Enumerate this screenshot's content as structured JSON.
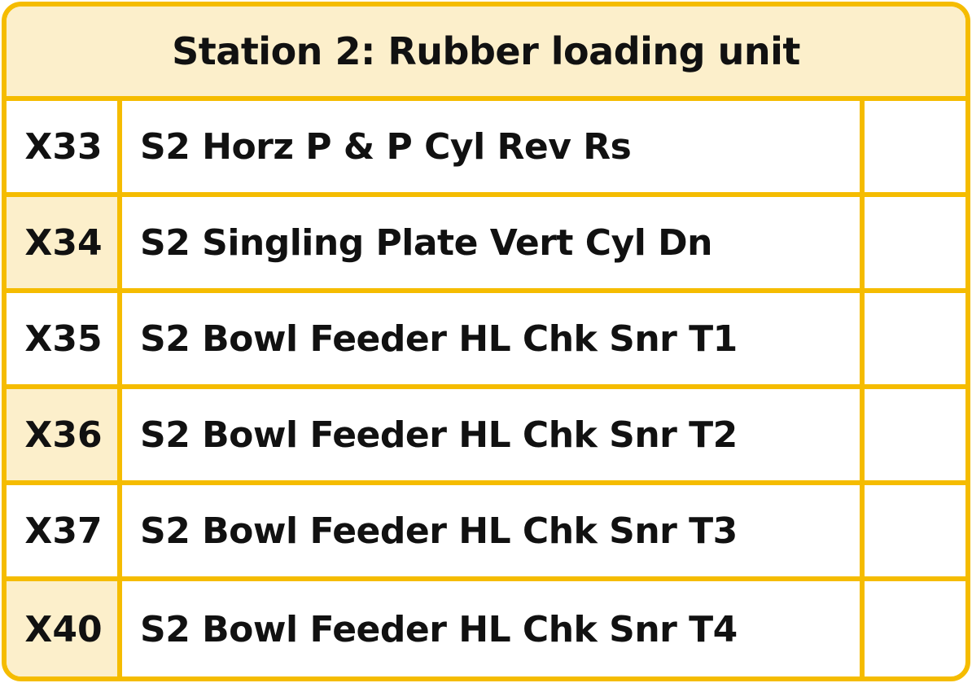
{
  "panel": {
    "title": "Station 2: Rubber loading unit",
    "colors": {
      "border": "#F5BC00",
      "header_fill": "#FCEFCB",
      "shaded_cell_fill": "#FCEFCB",
      "text": "#111111"
    },
    "rows": [
      {
        "address": "X33",
        "description": "S2 Horz P & P Cyl Rev Rs",
        "status": ""
      },
      {
        "address": "X34",
        "description": "S2 Singling Plate Vert Cyl Dn",
        "status": ""
      },
      {
        "address": "X35",
        "description": "S2 Bowl Feeder HL Chk Snr T1",
        "status": ""
      },
      {
        "address": "X36",
        "description": "S2 Bowl Feeder HL Chk Snr T2",
        "status": ""
      },
      {
        "address": "X37",
        "description": "S2 Bowl Feeder HL Chk Snr T3",
        "status": ""
      },
      {
        "address": "X40",
        "description": "S2 Bowl Feeder HL Chk Snr T4",
        "status": ""
      }
    ]
  }
}
